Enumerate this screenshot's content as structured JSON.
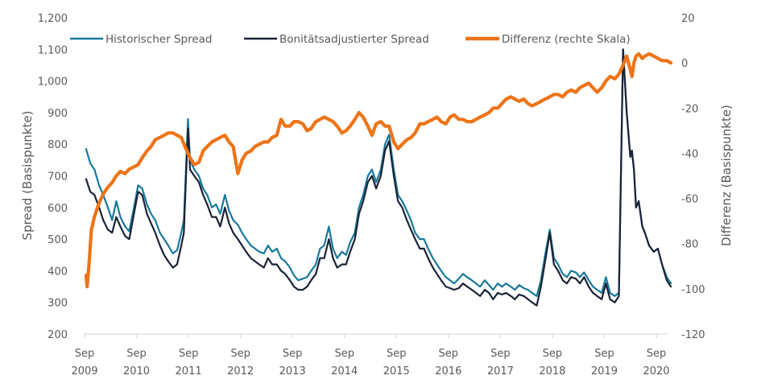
{
  "chart_data": {
    "type": "line",
    "title": "",
    "xlabel": "",
    "ylabel": "Spread (Basispunkte)",
    "y2label": "Differenz (Basispunkte)",
    "ylim": [
      200,
      1200
    ],
    "y2lim": [
      -120,
      20
    ],
    "grid": false,
    "legend_position": "top",
    "x_ticks": [
      {
        "line1": "Sep",
        "line2": "2009",
        "t": 2009.67
      },
      {
        "line1": "Sep",
        "line2": "2010",
        "t": 2010.67
      },
      {
        "line1": "Sep",
        "line2": "2011",
        "t": 2011.67
      },
      {
        "line1": "Sep",
        "line2": "2012",
        "t": 2012.67
      },
      {
        "line1": "Sep",
        "line2": "2013",
        "t": 2013.67
      },
      {
        "line1": "Sep",
        "line2": "2014",
        "t": 2014.67
      },
      {
        "line1": "Sep",
        "line2": "2015",
        "t": 2015.67
      },
      {
        "line1": "Sep",
        "line2": "2016",
        "t": 2016.67
      },
      {
        "line1": "Sep",
        "line2": "2017",
        "t": 2017.67
      },
      {
        "line1": "Sep",
        "line2": "2018",
        "t": 2018.67
      },
      {
        "line1": "Sep",
        "line2": "2019",
        "t": 2019.67
      },
      {
        "line1": "Sep",
        "line2": "2020",
        "t": 2020.67
      }
    ],
    "xlim": [
      2009.67,
      2021.0
    ],
    "y_ticks": [
      "200",
      "300",
      "400",
      "500",
      "600",
      "700",
      "800",
      "900",
      "1,000",
      "1,100",
      "1,200"
    ],
    "y_tick_values": [
      200,
      300,
      400,
      500,
      600,
      700,
      800,
      900,
      1000,
      1100,
      1200
    ],
    "y2_ticks": [
      "-120",
      "-100",
      "-80",
      "-60",
      "-40",
      "-20",
      "0",
      "20"
    ],
    "y2_tick_values": [
      -120,
      -100,
      -80,
      -60,
      -40,
      -20,
      0,
      20
    ],
    "series": [
      {
        "name": "Historischer Spread",
        "axis": "left",
        "color": "#17799b",
        "x": [
          2009.7,
          2009.78,
          2009.86,
          2009.95,
          2010.03,
          2010.12,
          2010.2,
          2010.28,
          2010.36,
          2010.45,
          2010.53,
          2010.62,
          2010.7,
          2010.78,
          2010.87,
          2010.95,
          2011.03,
          2011.12,
          2011.2,
          2011.28,
          2011.37,
          2011.45,
          2011.53,
          2011.58,
          2011.62,
          2011.66,
          2011.7,
          2011.78,
          2011.87,
          2011.95,
          2012.03,
          2012.12,
          2012.2,
          2012.28,
          2012.37,
          2012.45,
          2012.53,
          2012.62,
          2012.7,
          2012.78,
          2012.87,
          2012.95,
          2013.03,
          2013.12,
          2013.2,
          2013.28,
          2013.37,
          2013.45,
          2013.53,
          2013.62,
          2013.7,
          2013.78,
          2013.87,
          2013.95,
          2014.03,
          2014.12,
          2014.2,
          2014.28,
          2014.37,
          2014.45,
          2014.53,
          2014.62,
          2014.7,
          2014.78,
          2014.87,
          2014.95,
          2015.03,
          2015.12,
          2015.2,
          2015.28,
          2015.37,
          2015.45,
          2015.53,
          2015.62,
          2015.7,
          2015.78,
          2015.87,
          2015.95,
          2016.03,
          2016.12,
          2016.2,
          2016.28,
          2016.37,
          2016.45,
          2016.53,
          2016.62,
          2016.7,
          2016.78,
          2016.87,
          2016.95,
          2017.03,
          2017.12,
          2017.2,
          2017.28,
          2017.37,
          2017.45,
          2017.53,
          2017.62,
          2017.7,
          2017.78,
          2017.87,
          2017.95,
          2018.03,
          2018.12,
          2018.2,
          2018.28,
          2018.37,
          2018.45,
          2018.53,
          2018.62,
          2018.7,
          2018.78,
          2018.87,
          2018.95,
          2019.03,
          2019.12,
          2019.2,
          2019.28,
          2019.37,
          2019.45,
          2019.53,
          2019.62,
          2019.7,
          2019.78,
          2019.87,
          2019.95,
          2020.03,
          2020.1,
          2020.17,
          2020.2,
          2020.24,
          2020.28,
          2020.33,
          2020.4,
          2020.45,
          2020.53,
          2020.62,
          2020.7,
          2020.78,
          2020.87,
          2020.95
        ],
        "values": [
          785,
          740,
          720,
          670,
          640,
          600,
          560,
          620,
          570,
          540,
          525,
          600,
          670,
          660,
          610,
          580,
          560,
          520,
          500,
          480,
          455,
          465,
          520,
          560,
          720,
          880,
          750,
          720,
          700,
          660,
          640,
          600,
          610,
          580,
          640,
          590,
          560,
          545,
          520,
          500,
          480,
          470,
          460,
          455,
          480,
          460,
          470,
          440,
          430,
          410,
          385,
          370,
          375,
          380,
          400,
          420,
          470,
          480,
          540,
          470,
          440,
          460,
          450,
          490,
          520,
          600,
          640,
          700,
          720,
          680,
          720,
          800,
          830,
          720,
          640,
          620,
          590,
          560,
          520,
          500,
          500,
          470,
          440,
          420,
          400,
          380,
          370,
          360,
          375,
          390,
          380,
          370,
          360,
          350,
          370,
          355,
          340,
          360,
          350,
          360,
          350,
          340,
          355,
          345,
          340,
          330,
          320,
          370,
          450,
          530,
          440,
          420,
          390,
          380,
          400,
          395,
          380,
          395,
          370,
          350,
          340,
          330,
          380,
          330,
          320,
          330,
          1100,
          900,
          760,
          780,
          720,
          600,
          620,
          540,
          520,
          480,
          460,
          470,
          420,
          380,
          360
        ]
      },
      {
        "name": "Bonitätsadjustierter Spread",
        "axis": "left",
        "color": "#1c2336",
        "x": [
          2009.7,
          2009.78,
          2009.86,
          2009.95,
          2010.03,
          2010.12,
          2010.2,
          2010.28,
          2010.36,
          2010.45,
          2010.53,
          2010.62,
          2010.7,
          2010.78,
          2010.87,
          2010.95,
          2011.03,
          2011.12,
          2011.2,
          2011.28,
          2011.37,
          2011.45,
          2011.53,
          2011.58,
          2011.62,
          2011.66,
          2011.7,
          2011.78,
          2011.87,
          2011.95,
          2012.03,
          2012.12,
          2012.2,
          2012.28,
          2012.37,
          2012.45,
          2012.53,
          2012.62,
          2012.7,
          2012.78,
          2012.87,
          2012.95,
          2013.03,
          2013.12,
          2013.2,
          2013.28,
          2013.37,
          2013.45,
          2013.53,
          2013.62,
          2013.7,
          2013.78,
          2013.87,
          2013.95,
          2014.03,
          2014.12,
          2014.2,
          2014.28,
          2014.37,
          2014.45,
          2014.53,
          2014.62,
          2014.7,
          2014.78,
          2014.87,
          2014.95,
          2015.03,
          2015.12,
          2015.2,
          2015.28,
          2015.37,
          2015.45,
          2015.53,
          2015.62,
          2015.7,
          2015.78,
          2015.87,
          2015.95,
          2016.03,
          2016.12,
          2016.2,
          2016.28,
          2016.37,
          2016.45,
          2016.53,
          2016.62,
          2016.7,
          2016.78,
          2016.87,
          2016.95,
          2017.03,
          2017.12,
          2017.2,
          2017.28,
          2017.37,
          2017.45,
          2017.53,
          2017.62,
          2017.7,
          2017.78,
          2017.87,
          2017.95,
          2018.03,
          2018.12,
          2018.2,
          2018.28,
          2018.37,
          2018.45,
          2018.53,
          2018.62,
          2018.7,
          2018.78,
          2018.87,
          2018.95,
          2019.03,
          2019.12,
          2019.2,
          2019.28,
          2019.37,
          2019.45,
          2019.53,
          2019.62,
          2019.7,
          2019.78,
          2019.87,
          2019.95,
          2020.03,
          2020.1,
          2020.17,
          2020.2,
          2020.24,
          2020.28,
          2020.33,
          2020.4,
          2020.45,
          2020.53,
          2020.62,
          2020.7,
          2020.78,
          2020.87,
          2020.95
        ],
        "values": [
          690,
          650,
          640,
          600,
          560,
          530,
          520,
          570,
          540,
          510,
          500,
          580,
          650,
          640,
          580,
          550,
          520,
          480,
          450,
          430,
          410,
          420,
          480,
          520,
          690,
          850,
          720,
          700,
          680,
          640,
          610,
          570,
          570,
          540,
          600,
          550,
          520,
          500,
          480,
          460,
          440,
          430,
          420,
          410,
          440,
          420,
          420,
          400,
          390,
          370,
          350,
          340,
          340,
          350,
          370,
          390,
          440,
          440,
          500,
          440,
          410,
          420,
          420,
          460,
          500,
          580,
          620,
          680,
          700,
          660,
          700,
          780,
          810,
          700,
          620,
          600,
          560,
          530,
          500,
          470,
          470,
          440,
          410,
          390,
          370,
          350,
          345,
          340,
          345,
          360,
          350,
          340,
          330,
          320,
          340,
          330,
          310,
          330,
          325,
          330,
          320,
          310,
          325,
          320,
          310,
          300,
          290,
          350,
          430,
          520,
          420,
          400,
          370,
          360,
          380,
          375,
          360,
          380,
          350,
          330,
          320,
          310,
          360,
          310,
          300,
          320,
          1100,
          900,
          760,
          780,
          720,
          600,
          620,
          540,
          520,
          480,
          460,
          470,
          420,
          370,
          350
        ]
      },
      {
        "name": "Differenz (rechte Skala)",
        "axis": "right",
        "color": "#ed7418",
        "x": [
          2009.7,
          2009.72,
          2009.76,
          2009.8,
          2009.86,
          2009.95,
          2010.03,
          2010.12,
          2010.2,
          2010.28,
          2010.36,
          2010.45,
          2010.53,
          2010.62,
          2010.7,
          2010.78,
          2010.87,
          2010.95,
          2011.03,
          2011.12,
          2011.2,
          2011.28,
          2011.37,
          2011.45,
          2011.53,
          2011.62,
          2011.7,
          2011.78,
          2011.87,
          2011.95,
          2012.03,
          2012.12,
          2012.2,
          2012.28,
          2012.37,
          2012.45,
          2012.53,
          2012.62,
          2012.7,
          2012.78,
          2012.87,
          2012.95,
          2013.03,
          2013.12,
          2013.2,
          2013.28,
          2013.37,
          2013.45,
          2013.53,
          2013.62,
          2013.7,
          2013.78,
          2013.87,
          2013.95,
          2014.03,
          2014.12,
          2014.2,
          2014.28,
          2014.37,
          2014.45,
          2014.53,
          2014.62,
          2014.7,
          2014.78,
          2014.87,
          2014.95,
          2015.03,
          2015.12,
          2015.2,
          2015.28,
          2015.37,
          2015.45,
          2015.53,
          2015.62,
          2015.7,
          2015.78,
          2015.87,
          2015.95,
          2016.03,
          2016.12,
          2016.2,
          2016.28,
          2016.37,
          2016.45,
          2016.53,
          2016.62,
          2016.7,
          2016.78,
          2016.87,
          2016.95,
          2017.03,
          2017.12,
          2017.2,
          2017.28,
          2017.37,
          2017.45,
          2017.53,
          2017.62,
          2017.7,
          2017.78,
          2017.87,
          2017.95,
          2018.03,
          2018.12,
          2018.2,
          2018.28,
          2018.37,
          2018.45,
          2018.53,
          2018.62,
          2018.7,
          2018.78,
          2018.87,
          2018.95,
          2019.03,
          2019.12,
          2019.2,
          2019.28,
          2019.37,
          2019.45,
          2019.53,
          2019.62,
          2019.7,
          2019.78,
          2019.87,
          2019.95,
          2020.03,
          2020.1,
          2020.17,
          2020.2,
          2020.24,
          2020.28,
          2020.33,
          2020.4,
          2020.45,
          2020.53,
          2020.62,
          2020.7,
          2020.78,
          2020.87,
          2020.95
        ],
        "values": [
          -94,
          -99,
          -88,
          -74,
          -68,
          -62,
          -58,
          -55,
          -53,
          -50,
          -48,
          -49,
          -47,
          -46,
          -45,
          -42,
          -39,
          -37,
          -34,
          -33,
          -32,
          -31,
          -31,
          -32,
          -33,
          -38,
          -42,
          -45,
          -44,
          -39,
          -37,
          -35,
          -34,
          -33,
          -32,
          -35,
          -37,
          -49,
          -43,
          -40,
          -39,
          -37,
          -36,
          -35,
          -35,
          -33,
          -32,
          -25,
          -28,
          -28,
          -26,
          -26,
          -27,
          -30,
          -29,
          -26,
          -25,
          -24,
          -25,
          -26,
          -28,
          -31,
          -30,
          -28,
          -25,
          -22,
          -24,
          -28,
          -32,
          -27,
          -26,
          -28,
          -28,
          -35,
          -38,
          -36,
          -34,
          -33,
          -31,
          -27,
          -27,
          -26,
          -25,
          -24,
          -26,
          -27,
          -24,
          -23,
          -25,
          -25,
          -26,
          -26,
          -25,
          -24,
          -23,
          -22,
          -20,
          -20,
          -18,
          -16,
          -15,
          -16,
          -17,
          -16,
          -18,
          -19,
          -18,
          -17,
          -16,
          -15,
          -14,
          -14,
          -15,
          -13,
          -12,
          -13,
          -11,
          -10,
          -9,
          -11,
          -13,
          -11,
          -8,
          -6,
          -7,
          -5,
          -1,
          3,
          -3,
          -6,
          0,
          3,
          4,
          2,
          3,
          4,
          3,
          2,
          1,
          1,
          0
        ]
      }
    ]
  }
}
